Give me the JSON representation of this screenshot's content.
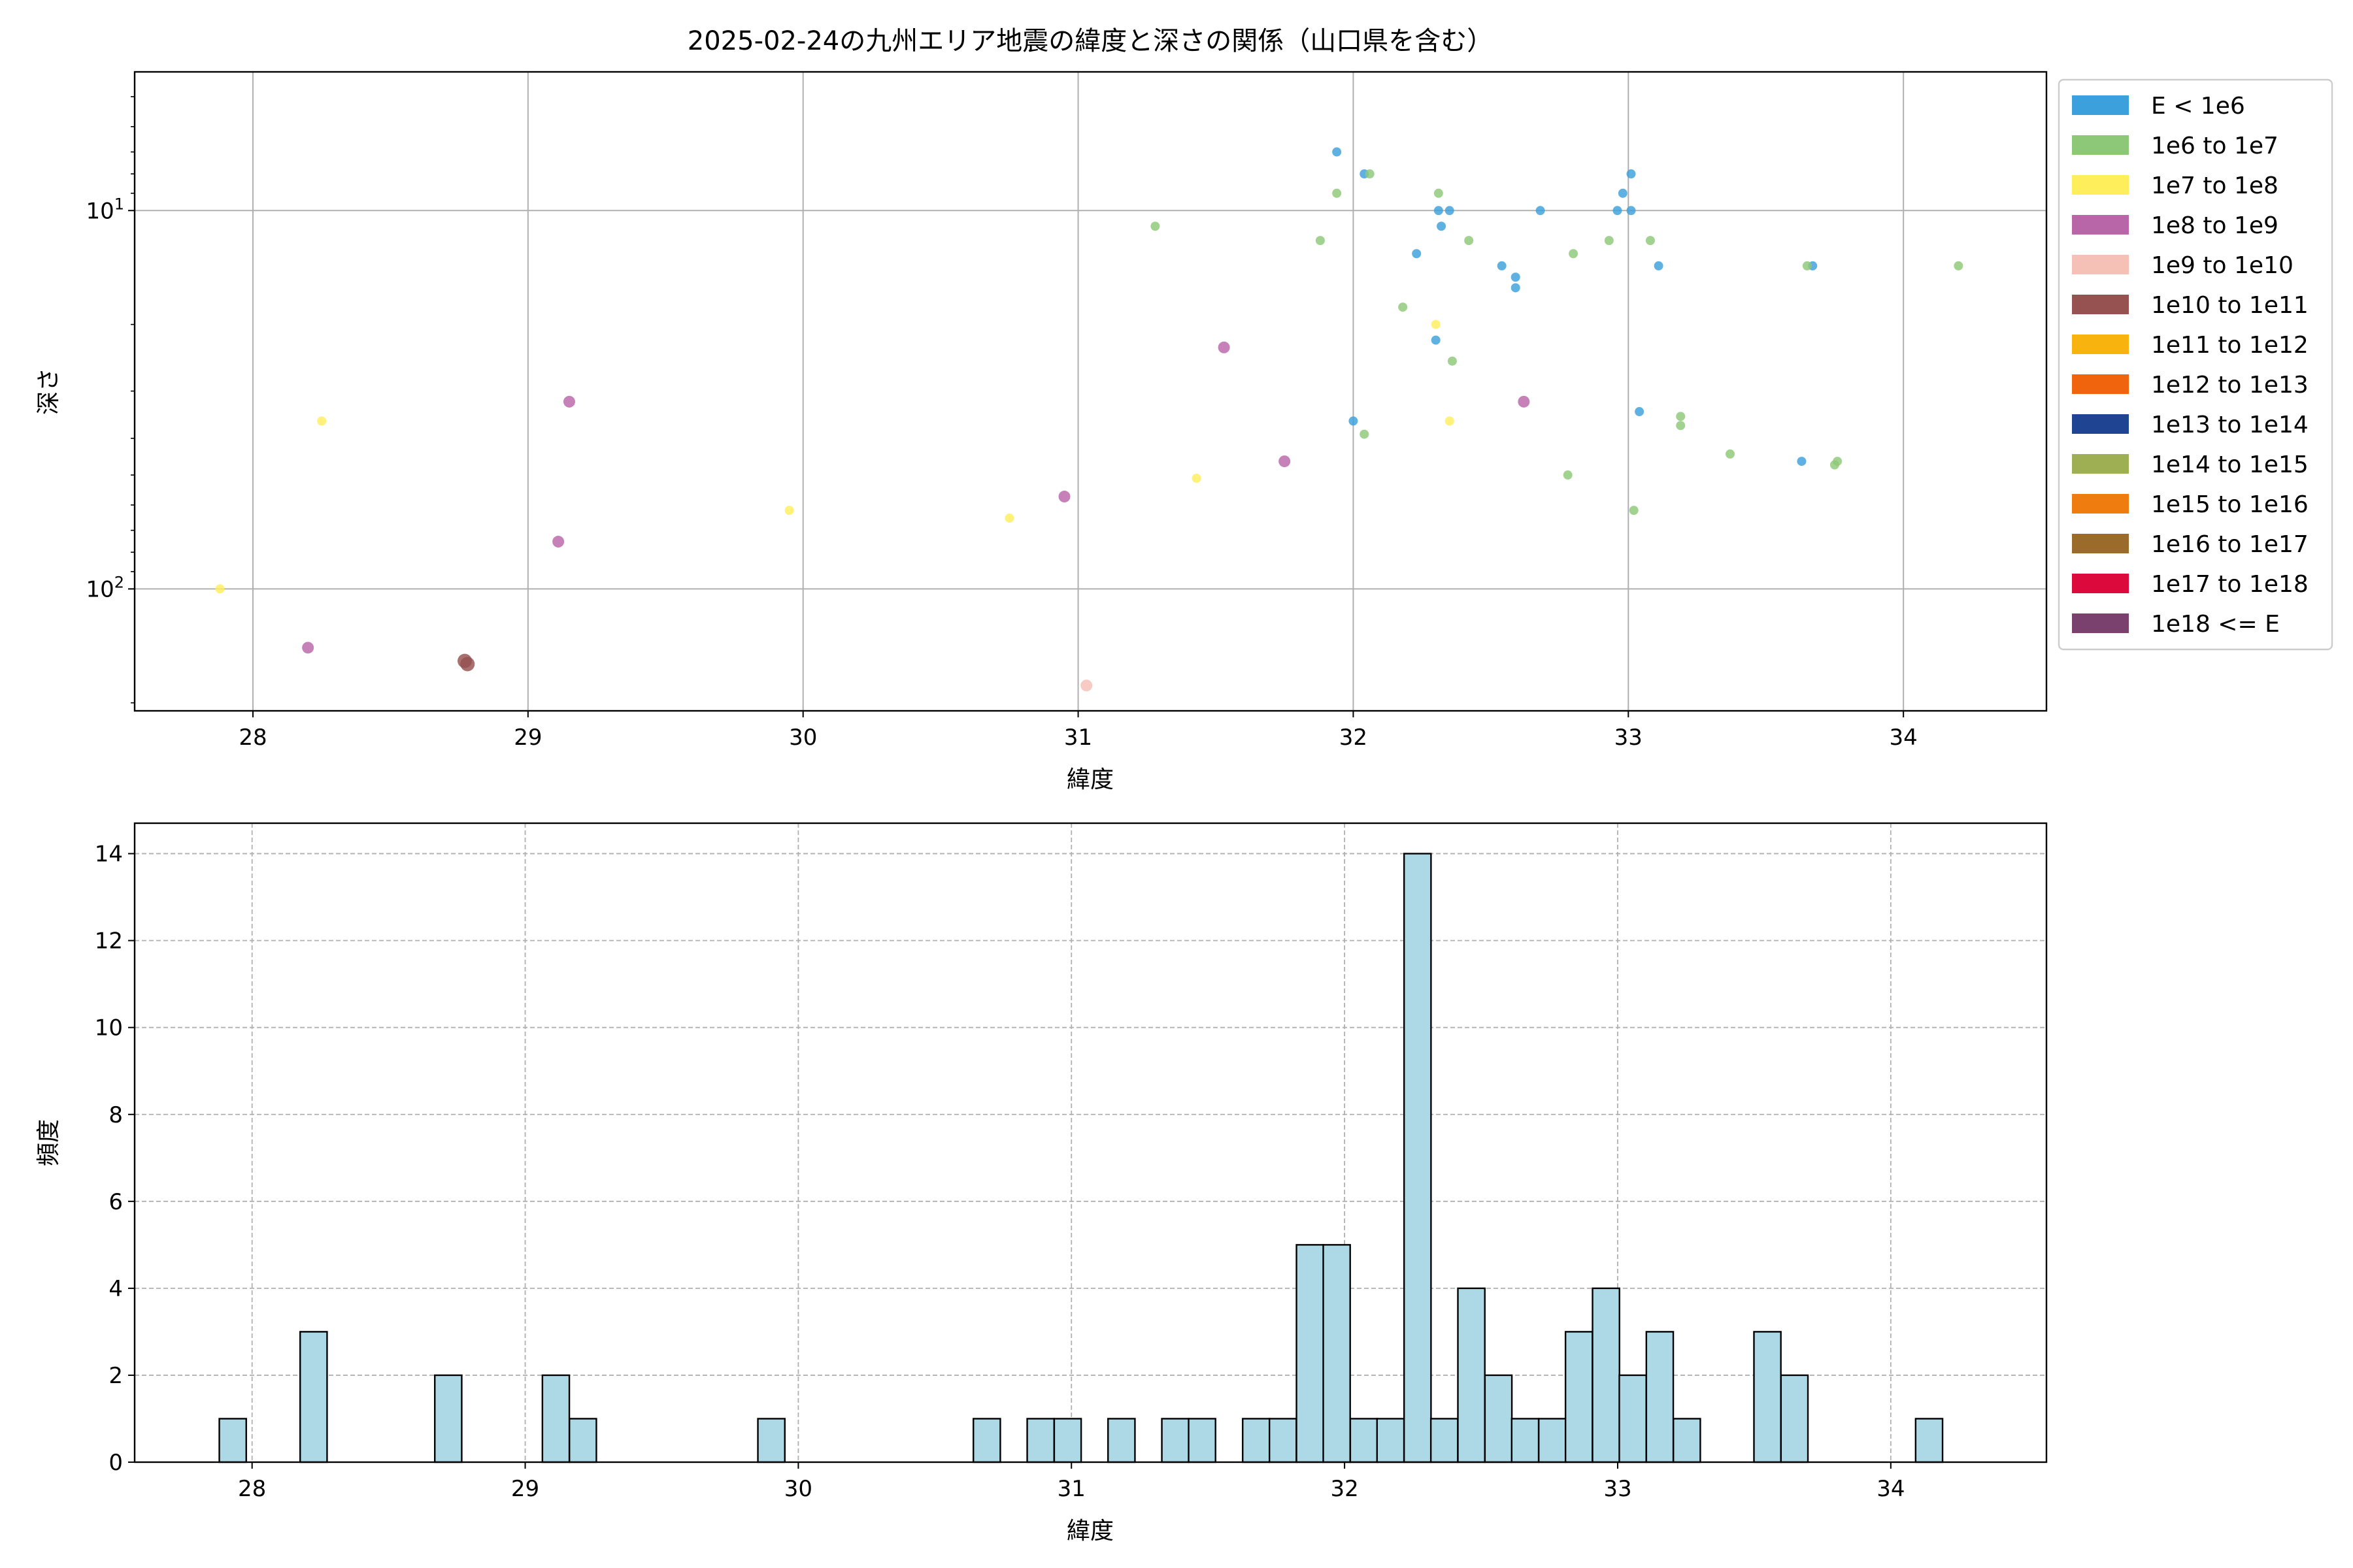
{
  "chart_data": [
    {
      "type": "scatter",
      "title": "2025-02-24の九州エリア地震の緯度と深さの関係（山口県を含む）",
      "xlabel": "緯度",
      "ylabel": "深さ",
      "x_ticks": [
        28,
        29,
        30,
        31,
        32,
        33,
        34
      ],
      "y_ticks": [
        10,
        100
      ],
      "y_tick_labels": [
        "10^1",
        "10^2"
      ],
      "xlim": [
        27.57,
        34.52
      ],
      "ylim": [
        210,
        4.3
      ],
      "y_scale": "log",
      "y_inverted": true,
      "grid": true,
      "legend_position": "outside-right",
      "legend": [
        {
          "label": "E < 1e6",
          "color": "#3ca0dc"
        },
        {
          "label": "1e6 to 1e7",
          "color": "#8dc878"
        },
        {
          "label": "1e7 to 1e8",
          "color": "#ffee5c"
        },
        {
          "label": "1e8 to 1e9",
          "color": "#b966a8"
        },
        {
          "label": "1e9 to 1e10",
          "color": "#f5c0b6"
        },
        {
          "label": "1e10 to 1e11",
          "color": "#955250"
        },
        {
          "label": "1e11 to 1e12",
          "color": "#f9b30e"
        },
        {
          "label": "1e12 to 1e13",
          "color": "#ef640d"
        },
        {
          "label": "1e13 to 1e14",
          "color": "#1f4592"
        },
        {
          "label": "1e14 to 1e15",
          "color": "#9eae52"
        },
        {
          "label": "1e15 to 1e16",
          "color": "#ee7c0e"
        },
        {
          "label": "1e16 to 1e17",
          "color": "#9a6b2b"
        },
        {
          "label": "1e17 to 1e18",
          "color": "#dc0a3c"
        },
        {
          "label": "1e18 <= E",
          "color": "#7a416e"
        }
      ],
      "points": [
        {
          "x": 31.94,
          "y": 7.0,
          "c": 0
        },
        {
          "x": 32.04,
          "y": 8.0,
          "c": 0
        },
        {
          "x": 33.01,
          "y": 8.0,
          "c": 0
        },
        {
          "x": 32.98,
          "y": 9.0,
          "c": 0
        },
        {
          "x": 32.31,
          "y": 10.0,
          "c": 0
        },
        {
          "x": 32.35,
          "y": 10.0,
          "c": 0
        },
        {
          "x": 32.68,
          "y": 10.0,
          "c": 0
        },
        {
          "x": 32.96,
          "y": 10.0,
          "c": 0
        },
        {
          "x": 33.01,
          "y": 10.0,
          "c": 0
        },
        {
          "x": 32.32,
          "y": 11.0,
          "c": 0
        },
        {
          "x": 32.23,
          "y": 13.0,
          "c": 0
        },
        {
          "x": 32.54,
          "y": 14.0,
          "c": 0
        },
        {
          "x": 33.11,
          "y": 14.0,
          "c": 0
        },
        {
          "x": 33.67,
          "y": 14.0,
          "c": 0
        },
        {
          "x": 32.59,
          "y": 15.0,
          "c": 0
        },
        {
          "x": 32.59,
          "y": 16.0,
          "c": 0
        },
        {
          "x": 32.3,
          "y": 22.0,
          "c": 0
        },
        {
          "x": 33.04,
          "y": 34.0,
          "c": 0
        },
        {
          "x": 32.0,
          "y": 36.0,
          "c": 0
        },
        {
          "x": 33.63,
          "y": 46.0,
          "c": 0
        },
        {
          "x": 32.06,
          "y": 8.0,
          "c": 1
        },
        {
          "x": 31.94,
          "y": 9.0,
          "c": 1
        },
        {
          "x": 32.31,
          "y": 9.0,
          "c": 1
        },
        {
          "x": 31.28,
          "y": 11.0,
          "c": 1
        },
        {
          "x": 31.88,
          "y": 12.0,
          "c": 1
        },
        {
          "x": 32.42,
          "y": 12.0,
          "c": 1
        },
        {
          "x": 32.93,
          "y": 12.0,
          "c": 1
        },
        {
          "x": 33.08,
          "y": 12.0,
          "c": 1
        },
        {
          "x": 32.8,
          "y": 13.0,
          "c": 1
        },
        {
          "x": 33.65,
          "y": 14.0,
          "c": 1
        },
        {
          "x": 34.2,
          "y": 14.0,
          "c": 1
        },
        {
          "x": 32.18,
          "y": 18.0,
          "c": 1
        },
        {
          "x": 32.36,
          "y": 25.0,
          "c": 1
        },
        {
          "x": 33.19,
          "y": 35.0,
          "c": 1
        },
        {
          "x": 33.19,
          "y": 37.0,
          "c": 1
        },
        {
          "x": 32.04,
          "y": 39.0,
          "c": 1
        },
        {
          "x": 33.37,
          "y": 44.0,
          "c": 1
        },
        {
          "x": 33.76,
          "y": 46.0,
          "c": 1
        },
        {
          "x": 33.75,
          "y": 47.0,
          "c": 1
        },
        {
          "x": 32.78,
          "y": 50.0,
          "c": 1
        },
        {
          "x": 33.02,
          "y": 62.0,
          "c": 1
        },
        {
          "x": 32.3,
          "y": 20.0,
          "c": 2
        },
        {
          "x": 28.25,
          "y": 36.0,
          "c": 2
        },
        {
          "x": 32.35,
          "y": 36.0,
          "c": 2
        },
        {
          "x": 31.43,
          "y": 51.0,
          "c": 2
        },
        {
          "x": 29.95,
          "y": 62.0,
          "c": 2
        },
        {
          "x": 30.75,
          "y": 65.0,
          "c": 2
        },
        {
          "x": 27.88,
          "y": 100.0,
          "c": 2
        },
        {
          "x": 31.53,
          "y": 23.0,
          "c": 3
        },
        {
          "x": 29.15,
          "y": 32.0,
          "c": 3
        },
        {
          "x": 32.62,
          "y": 32.0,
          "c": 3
        },
        {
          "x": 31.75,
          "y": 46.0,
          "c": 3
        },
        {
          "x": 30.95,
          "y": 57.0,
          "c": 3
        },
        {
          "x": 29.11,
          "y": 75.0,
          "c": 3
        },
        {
          "x": 28.2,
          "y": 143.0,
          "c": 3
        },
        {
          "x": 31.03,
          "y": 180.0,
          "c": 4
        },
        {
          "x": 28.77,
          "y": 155.0,
          "c": 5
        },
        {
          "x": 28.78,
          "y": 158.0,
          "c": 5
        }
      ]
    },
    {
      "type": "bar",
      "title": "",
      "xlabel": "緯度",
      "ylabel": "頻度",
      "x_ticks": [
        28,
        29,
        30,
        31,
        32,
        33,
        34
      ],
      "y_ticks": [
        0,
        2,
        4,
        6,
        8,
        10,
        12,
        14
      ],
      "xlim": [
        27.57,
        34.57
      ],
      "ylim": [
        0,
        14.7
      ],
      "bin_width": 0.0986,
      "grid": "dashed",
      "color": "#add8e6",
      "bins": [
        {
          "x0": 27.88,
          "count": 1
        },
        {
          "x0": 28.176,
          "count": 3
        },
        {
          "x0": 28.669,
          "count": 2
        },
        {
          "x0": 29.063,
          "count": 2
        },
        {
          "x0": 29.162,
          "count": 1
        },
        {
          "x0": 29.852,
          "count": 1
        },
        {
          "x0": 30.641,
          "count": 1
        },
        {
          "x0": 30.838,
          "count": 1
        },
        {
          "x0": 30.937,
          "count": 1
        },
        {
          "x0": 31.134,
          "count": 1
        },
        {
          "x0": 31.331,
          "count": 1
        },
        {
          "x0": 31.429,
          "count": 1
        },
        {
          "x0": 31.627,
          "count": 1
        },
        {
          "x0": 31.725,
          "count": 1
        },
        {
          "x0": 31.824,
          "count": 5
        },
        {
          "x0": 31.922,
          "count": 5
        },
        {
          "x0": 32.021,
          "count": 1
        },
        {
          "x0": 32.119,
          "count": 1
        },
        {
          "x0": 32.218,
          "count": 14
        },
        {
          "x0": 32.316,
          "count": 1
        },
        {
          "x0": 32.415,
          "count": 4
        },
        {
          "x0": 32.514,
          "count": 2
        },
        {
          "x0": 32.612,
          "count": 1
        },
        {
          "x0": 32.711,
          "count": 1
        },
        {
          "x0": 32.809,
          "count": 3
        },
        {
          "x0": 32.908,
          "count": 4
        },
        {
          "x0": 33.006,
          "count": 2
        },
        {
          "x0": 33.105,
          "count": 3
        },
        {
          "x0": 33.204,
          "count": 1
        },
        {
          "x0": 33.499,
          "count": 3
        },
        {
          "x0": 33.598,
          "count": 2
        },
        {
          "x0": 34.091,
          "count": 1
        }
      ]
    }
  ]
}
